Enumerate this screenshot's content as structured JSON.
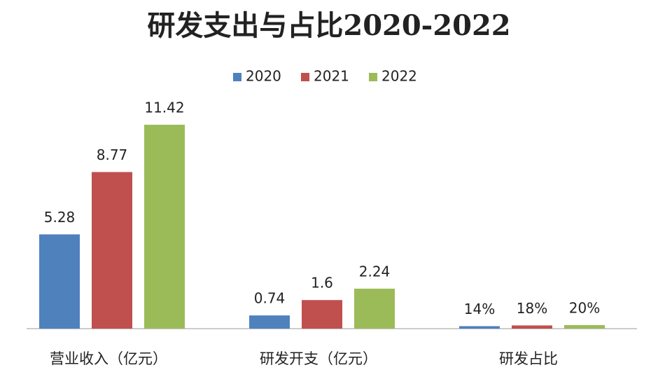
{
  "chart_data": {
    "type": "bar",
    "title": "研发支出与占比2020-2022",
    "categories": [
      "营业收入（亿元）",
      "研发开支（亿元）",
      "研发占比"
    ],
    "series": [
      {
        "name": "2020",
        "color": "#4f81bd",
        "values": [
          5.28,
          0.74,
          0.14
        ],
        "value_labels": [
          "5.28",
          "0.74",
          "14%"
        ]
      },
      {
        "name": "2021",
        "color": "#c0504d",
        "values": [
          8.77,
          1.6,
          0.18
        ],
        "value_labels": [
          "8.77",
          "1.6",
          "18%"
        ]
      },
      {
        "name": "2022",
        "color": "#9bbb59",
        "values": [
          11.42,
          2.24,
          0.2
        ],
        "value_labels": [
          "11.42",
          "2.24",
          "20%"
        ]
      }
    ],
    "legend": "top"
  }
}
